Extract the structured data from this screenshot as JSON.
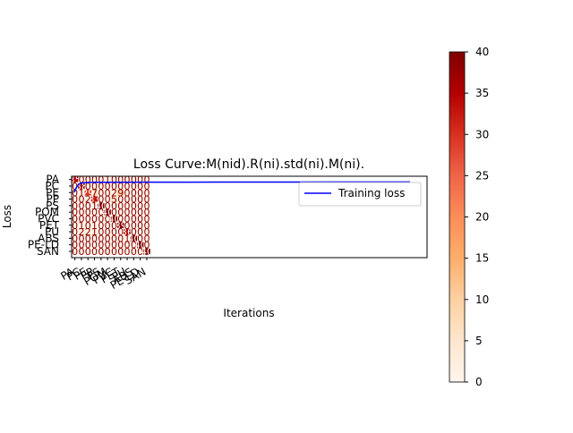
{
  "chart_data": [
    {
      "type": "heatmap",
      "title": "Loss Curve:M(nid).R(ni).std(ni).M(ni).",
      "xlabel": "Iterations",
      "ylabel": "Loss",
      "row_labels": [
        "PA",
        "PC",
        "PE",
        "PP",
        "PS",
        "POM",
        "PVC",
        "PET",
        "PU",
        "ABS",
        "PE-LD",
        "SAN"
      ],
      "col_labels": [
        "PA",
        "PC",
        "PE",
        "PP",
        "PS",
        "POM",
        "PVC",
        "PET",
        "PU",
        "ABS",
        "PE-LD",
        "SAN"
      ],
      "values": [
        [
          35,
          0,
          0,
          0,
          0,
          1,
          0,
          0,
          0,
          0,
          0,
          0
        ],
        [
          0,
          38,
          0,
          0,
          0,
          0,
          0,
          0,
          0,
          0,
          0,
          0
        ],
        [
          0,
          1,
          29,
          7,
          0,
          0,
          2,
          9,
          0,
          0,
          0,
          0
        ],
        [
          0,
          0,
          2,
          33,
          0,
          0,
          5,
          0,
          0,
          0,
          0,
          0
        ],
        [
          0,
          0,
          0,
          1,
          40,
          0,
          0,
          0,
          0,
          0,
          0,
          0
        ],
        [
          0,
          0,
          0,
          0,
          0,
          40,
          0,
          0,
          0,
          0,
          0,
          0
        ],
        [
          0,
          0,
          0,
          0,
          0,
          0,
          40,
          0,
          0,
          0,
          0,
          0
        ],
        [
          0,
          1,
          0,
          1,
          0,
          0,
          0,
          39,
          0,
          0,
          0,
          0
        ],
        [
          0,
          2,
          2,
          1,
          0,
          0,
          0,
          0,
          36,
          0,
          0,
          0
        ],
        [
          0,
          0,
          0,
          0,
          0,
          0,
          0,
          0,
          1,
          40,
          0,
          0
        ],
        [
          0,
          0,
          0,
          0,
          0,
          0,
          0,
          0,
          0,
          0,
          40,
          0
        ],
        [
          0,
          0,
          0,
          0,
          0,
          0,
          0,
          0,
          0,
          0,
          0,
          40
        ]
      ],
      "colorbar": {
        "min": 0,
        "max": 40,
        "ticks": [
          0,
          5,
          10,
          15,
          20,
          25,
          30,
          35,
          40
        ],
        "colormap": "OrRd"
      }
    },
    {
      "type": "line",
      "series": [
        {
          "name": "Training loss",
          "color": "#0000ff",
          "x": [
            0,
            2,
            4,
            6,
            8,
            10,
            15,
            20,
            30,
            40,
            60,
            80,
            100,
            150,
            200,
            250,
            300
          ],
          "y": [
            0.2,
            0.6,
            0.8,
            0.88,
            0.91,
            0.93,
            0.94,
            0.945,
            0.95,
            0.955,
            0.958,
            0.96,
            0.962,
            0.965,
            0.968,
            0.97,
            0.972
          ]
        }
      ],
      "legend": "upper right"
    }
  ]
}
